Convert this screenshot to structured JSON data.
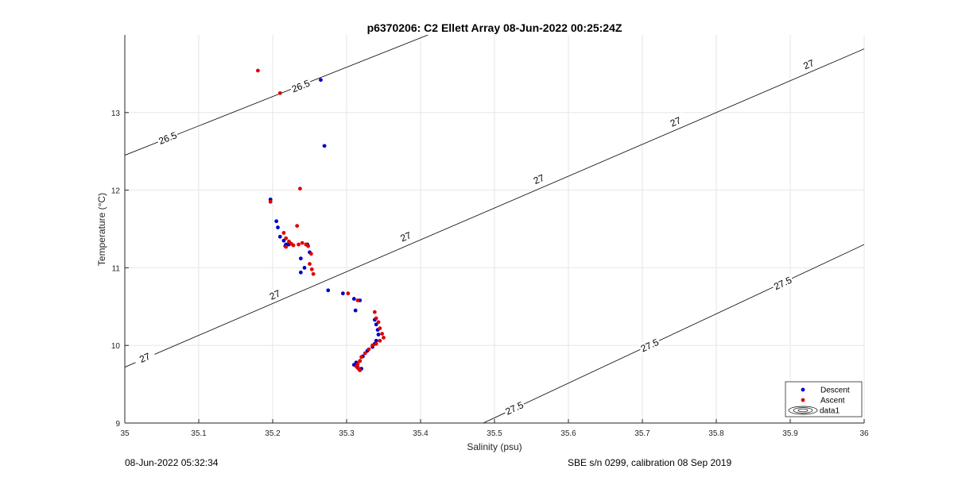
{
  "chart_data": {
    "type": "scatter",
    "title": "p6370206: C2 Ellett Array 08-Jun-2022 00:25:24Z",
    "xlabel": "Salinity (psu)",
    "ylabel": "Temperature (°C)",
    "xlim": [
      35,
      36
    ],
    "ylim": [
      9,
      14
    ],
    "xticks": [
      "35",
      "35.1",
      "35.2",
      "35.3",
      "35.4",
      "35.5",
      "35.6",
      "35.7",
      "35.8",
      "35.9",
      "36"
    ],
    "yticks": [
      "9",
      "10",
      "11",
      "12",
      "13"
    ],
    "grid": true,
    "legend_position": "bottom-right",
    "legend": [
      "Descent",
      "Ascent",
      "data1"
    ],
    "contours": [
      {
        "level": "26.5",
        "points": [
          [
            35.0,
            12.45
          ],
          [
            35.41,
            14.0
          ]
        ],
        "labels": [
          [
            35.058,
            12.67
          ],
          [
            35.238,
            13.34
          ]
        ]
      },
      {
        "level": "27",
        "points": [
          [
            35.0,
            9.72
          ],
          [
            36.0,
            13.82
          ]
        ],
        "labels": [
          [
            35.027,
            9.84
          ],
          [
            35.203,
            10.65
          ],
          [
            35.38,
            11.4
          ],
          [
            35.56,
            12.14
          ],
          [
            35.745,
            12.88
          ],
          [
            35.925,
            13.62
          ]
        ]
      },
      {
        "level": "27.5",
        "points": [
          [
            35.485,
            9.0
          ],
          [
            36.0,
            11.3
          ]
        ],
        "labels": [
          [
            35.527,
            9.19
          ],
          [
            35.71,
            10.0
          ],
          [
            35.89,
            10.8
          ]
        ]
      }
    ],
    "series": [
      {
        "name": "Descent",
        "color": "#0000cc",
        "x": [
          35.265,
          35.27,
          35.197,
          35.205,
          35.207,
          35.21,
          35.215,
          35.22,
          35.217,
          35.218,
          35.222,
          35.238,
          35.243,
          35.247,
          35.25,
          35.238,
          35.275,
          35.295,
          35.31,
          35.318,
          35.312,
          35.338,
          35.34,
          35.342,
          35.343,
          35.34,
          35.338,
          35.335,
          35.328,
          35.322,
          35.318,
          35.313,
          35.31,
          35.315,
          35.32
        ],
        "y": [
          13.42,
          12.57,
          11.88,
          11.6,
          11.52,
          11.4,
          11.35,
          11.3,
          11.28,
          11.3,
          11.3,
          11.12,
          11.0,
          11.3,
          11.2,
          10.94,
          10.71,
          10.67,
          10.6,
          10.58,
          10.45,
          10.33,
          10.27,
          10.2,
          10.14,
          10.06,
          10.02,
          9.98,
          9.93,
          9.86,
          9.8,
          9.78,
          9.75,
          9.72,
          9.7
        ]
      },
      {
        "name": "Ascent",
        "color": "#e00000",
        "x": [
          35.18,
          35.21,
          35.197,
          35.237,
          35.233,
          35.215,
          35.218,
          35.222,
          35.225,
          35.228,
          35.218,
          35.235,
          35.24,
          35.245,
          35.248,
          35.252,
          35.25,
          35.253,
          35.255,
          35.302,
          35.315,
          35.338,
          35.34,
          35.343,
          35.345,
          35.348,
          35.35,
          35.345,
          35.34,
          35.335,
          35.33,
          35.325,
          35.32,
          35.318,
          35.315,
          35.313,
          35.315,
          35.317,
          35.318
        ],
        "y": [
          13.54,
          13.25,
          11.85,
          12.02,
          11.54,
          11.45,
          11.38,
          11.34,
          11.31,
          11.29,
          11.27,
          11.3,
          11.32,
          11.3,
          11.28,
          11.18,
          11.05,
          10.98,
          10.92,
          10.67,
          10.58,
          10.43,
          10.35,
          10.3,
          10.22,
          10.15,
          10.1,
          10.06,
          10.02,
          10.0,
          9.95,
          9.9,
          9.85,
          9.8,
          9.76,
          9.73,
          9.71,
          9.69,
          9.68
        ]
      }
    ]
  },
  "footer": {
    "left": "08-Jun-2022 05:32:34",
    "right": "SBE s/n 0299, calibration 08 Sep 2019"
  }
}
